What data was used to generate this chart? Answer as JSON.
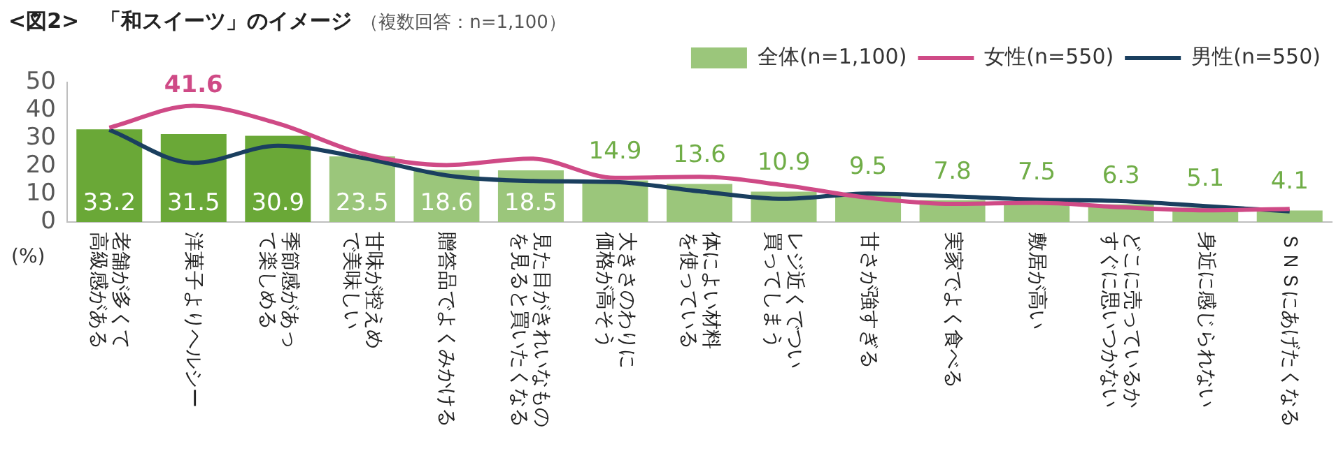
{
  "chart_data": {
    "type": "bar",
    "title": "<図2>　「和スイーツ」のイメージ",
    "subtitle": "（複数回答：n=1,100）",
    "ylabel": "(%)",
    "categories": [
      "老舗が多くて高級感がある",
      "洋菓子よりヘルシー",
      "季節感があって楽しめる",
      "甘味が控えめで美味しい",
      "贈答品でよくみかける",
      "見た目がきれいなものを見ると買いたくなる",
      "大きさのわりに価格が高そう",
      "体によい材料を使っている",
      "レジ近くでつい買ってしまう",
      "甘さが強すぎる",
      "実家でよく食べる",
      "敷居が高い",
      "どこに売っているかすぐに思いつかない",
      "身近に感じられない",
      "ＳＮＳにあげたくなる"
    ],
    "series": [
      {
        "name": "全体(n=1,100)",
        "color": "#9bc67b",
        "colors": [
          "#6aa837",
          "#6aa837",
          "#6aa837",
          "#9bc67b",
          "#9bc67b",
          "#9bc67b",
          "#9bc67b",
          "#9bc67b",
          "#9bc67b",
          "#9bc67b",
          "#9bc67b",
          "#9bc67b",
          "#9bc67b",
          "#9bc67b",
          "#9bc67b"
        ],
        "values": [
          33.2,
          31.5,
          30.9,
          23.5,
          18.6,
          18.5,
          14.9,
          13.6,
          10.9,
          9.5,
          7.8,
          7.5,
          6.3,
          5.1,
          4.1
        ],
        "value_labels": [
          "33.2",
          "31.5",
          "30.9",
          "23.5",
          "18.6",
          "18.5",
          "14.9",
          "13.6",
          "10.9",
          "9.5",
          "7.8",
          "7.5",
          "6.3",
          "5.1",
          "4.1"
        ]
      },
      {
        "name": "女性(n=550)",
        "type": "line",
        "color": "#cf4a86",
        "values": [
          33.8,
          41.6,
          35.3,
          24.5,
          20.4,
          22.7,
          15.8,
          16.2,
          13.2,
          8.7,
          6.5,
          6.9,
          5.3,
          4.2,
          4.7
        ],
        "value_labels": [
          null,
          "41.6",
          null,
          null,
          null,
          null,
          null,
          null,
          null,
          null,
          null,
          null,
          null,
          null,
          null
        ]
      },
      {
        "name": "男性(n=550)",
        "type": "line",
        "color": "#1a3f5f",
        "values": [
          33.0,
          21.2,
          27.3,
          23.0,
          16.7,
          14.7,
          14.3,
          11.0,
          8.3,
          10.2,
          9.2,
          8.0,
          7.5,
          5.7,
          3.8
        ]
      }
    ],
    "ylim": [
      0,
      50
    ],
    "yticks": [
      0,
      10,
      20,
      30,
      40,
      50
    ],
    "grid": false,
    "legend": "top right",
    "marker": "none",
    "line_style": "solid"
  }
}
